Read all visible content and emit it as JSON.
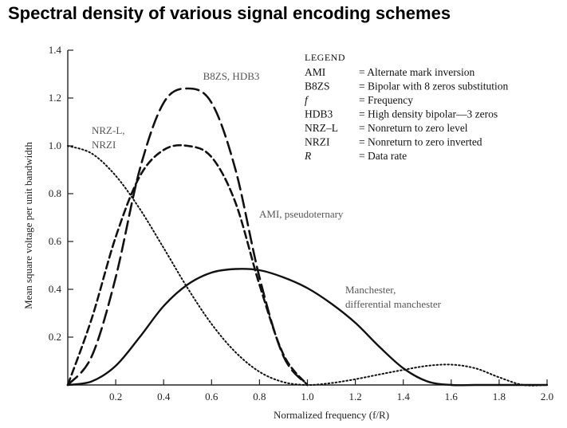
{
  "title": "Spectral density of various signal encoding schemes",
  "chart_data": {
    "type": "line",
    "title": "Spectral density of various signal encoding schemes",
    "xlabel": "Normalized frequency (f/R)",
    "ylabel": "Mean square voltage per unit bandwidth",
    "xlim": [
      0,
      2.0
    ],
    "ylim": [
      0,
      1.4
    ],
    "xticks": [
      "0.2",
      "0.4",
      "0.6",
      "0.8",
      "1.0",
      "1.2",
      "1.4",
      "1.6",
      "1.8",
      "2.0"
    ],
    "yticks": [
      "0.2",
      "0.4",
      "0.6",
      "0.8",
      "1.0",
      "1.2",
      "1.4"
    ],
    "grid": false,
    "series": [
      {
        "name": "NRZ-L, NRZI",
        "style": "dotted",
        "x": [
          0,
          0.1,
          0.2,
          0.3,
          0.4,
          0.5,
          0.6,
          0.7,
          0.8,
          0.9,
          1.0,
          1.1,
          1.2,
          1.3,
          1.4,
          1.5,
          1.6,
          1.7,
          1.8,
          1.9,
          2.0
        ],
        "y": [
          1.0,
          0.968,
          0.875,
          0.737,
          0.573,
          0.405,
          0.255,
          0.137,
          0.055,
          0.012,
          0.0,
          0.008,
          0.024,
          0.044,
          0.063,
          0.08,
          0.085,
          0.07,
          0.032,
          0.0,
          0.0
        ]
      },
      {
        "name": "AMI, pseudoternary",
        "style": "dashed",
        "x": [
          0,
          0.1,
          0.2,
          0.3,
          0.4,
          0.5,
          0.6,
          0.7,
          0.8,
          0.9,
          1.0
        ],
        "y": [
          0.0,
          0.278,
          0.619,
          0.872,
          0.983,
          1.0,
          0.953,
          0.762,
          0.419,
          0.127,
          0.0
        ]
      },
      {
        "name": "B8ZS, HDB3",
        "style": "long-dashed",
        "x": [
          0,
          0.1,
          0.2,
          0.3,
          0.4,
          0.5,
          0.6,
          0.7,
          0.8,
          0.9,
          1.0
        ],
        "y": [
          0.0,
          0.12,
          0.45,
          0.9,
          1.18,
          1.24,
          1.18,
          0.9,
          0.45,
          0.12,
          0.0
        ]
      },
      {
        "name": "Manchester, differential manchester",
        "style": "solid",
        "x": [
          0,
          0.1,
          0.2,
          0.3,
          0.4,
          0.5,
          0.6,
          0.7,
          0.8,
          0.9,
          1.0,
          1.1,
          1.2,
          1.3,
          1.4,
          1.5,
          1.6,
          1.7,
          1.8,
          1.9,
          2.0
        ],
        "y": [
          0.0,
          0.015,
          0.08,
          0.2,
          0.33,
          0.42,
          0.47,
          0.485,
          0.48,
          0.45,
          0.405,
          0.34,
          0.26,
          0.16,
          0.07,
          0.015,
          0.0,
          0.0,
          0.0,
          0.0,
          0.0
        ]
      }
    ],
    "annotations": [
      {
        "text": "B8ZS, HDB3",
        "series": 2
      },
      {
        "text": "NRZ-L,",
        "series": 0
      },
      {
        "text": "NRZI",
        "series": 0
      },
      {
        "text": "AMI, pseudoternary",
        "series": 1
      },
      {
        "text": "Manchester,",
        "series": 3
      },
      {
        "text": "differential manchester",
        "series": 3
      }
    ],
    "legend": {
      "heading": "LEGEND",
      "placement": "top-right",
      "entries": [
        {
          "term": "AMI",
          "definition": "= Alternate mark inversion"
        },
        {
          "term": "B8ZS",
          "definition": "= Bipolar with 8 zeros substitution"
        },
        {
          "term": "f",
          "definition": "= Frequency"
        },
        {
          "term": "HDB3",
          "definition": "= High density bipolar—3 zeros"
        },
        {
          "term": "NRZ–L",
          "definition": "= Nonreturn to zero level"
        },
        {
          "term": "NRZI",
          "definition": "= Nonreturn to zero inverted"
        },
        {
          "term": "R",
          "definition": "= Data rate"
        }
      ]
    }
  }
}
